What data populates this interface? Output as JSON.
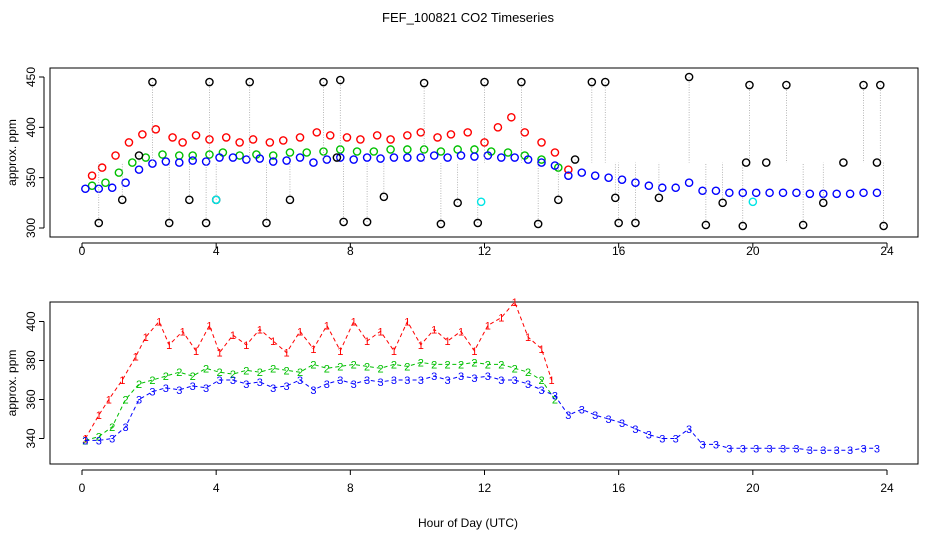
{
  "chart_data": [
    {
      "type": "scatter",
      "title": "FEF_100821  CO2 Timeseries",
      "ylabel": "approx. ppm",
      "xlabel": "",
      "xlim": [
        0,
        24
      ],
      "ylim": [
        300,
        450
      ],
      "x_ticks": [
        "0",
        "4",
        "8",
        "12",
        "16",
        "20",
        "24"
      ],
      "y_ticks": [
        "300",
        "350",
        "400",
        "450"
      ],
      "series": [
        {
          "color": "#ff0000",
          "marker": "circle",
          "x": [
            0.3,
            0.6,
            1.0,
            1.4,
            1.8,
            2.2,
            2.7,
            3.0,
            3.4,
            3.8,
            4.3,
            4.7,
            5.1,
            5.6,
            6.0,
            6.5,
            7.0,
            7.4,
            7.9,
            8.3,
            8.8,
            9.2,
            9.7,
            10.1,
            10.6,
            11.0,
            11.5,
            12.0,
            12.4,
            12.8,
            13.2,
            13.7,
            14.1,
            14.5
          ],
          "y": [
            352,
            360,
            372,
            385,
            393,
            398,
            390,
            385,
            392,
            388,
            390,
            385,
            388,
            385,
            387,
            390,
            395,
            392,
            390,
            388,
            392,
            388,
            392,
            395,
            390,
            393,
            395,
            385,
            400,
            410,
            395,
            385,
            375,
            358
          ]
        },
        {
          "color": "#00c000",
          "marker": "circle",
          "x": [
            0.3,
            0.7,
            1.1,
            1.5,
            1.9,
            2.4,
            2.9,
            3.3,
            3.8,
            4.2,
            4.7,
            5.2,
            5.7,
            6.2,
            6.7,
            7.2,
            7.7,
            8.2,
            8.7,
            9.2,
            9.7,
            10.2,
            10.7,
            11.2,
            11.7,
            12.2,
            12.7,
            13.2,
            13.7,
            14.2
          ],
          "y": [
            342,
            345,
            355,
            365,
            370,
            373,
            372,
            372,
            373,
            375,
            372,
            373,
            372,
            375,
            375,
            376,
            378,
            376,
            376,
            378,
            378,
            378,
            376,
            378,
            378,
            376,
            375,
            372,
            368,
            360
          ]
        },
        {
          "color": "#0000ff",
          "marker": "circle",
          "x": [
            0.1,
            0.5,
            0.9,
            1.3,
            1.7,
            2.1,
            2.5,
            2.9,
            3.3,
            3.7,
            4.1,
            4.5,
            4.9,
            5.3,
            5.7,
            6.1,
            6.5,
            6.9,
            7.3,
            7.7,
            8.1,
            8.5,
            8.9,
            9.3,
            9.7,
            10.1,
            10.5,
            10.9,
            11.3,
            11.7,
            12.1,
            12.5,
            12.9,
            13.3,
            13.7,
            14.1,
            14.5,
            14.9,
            15.3,
            15.7,
            16.1,
            16.5,
            16.9,
            17.3,
            17.7,
            18.1,
            18.5,
            18.9,
            19.3,
            19.7,
            20.1,
            20.5,
            20.9,
            21.3,
            21.7,
            22.1,
            22.5,
            22.9,
            23.3,
            23.7
          ],
          "y": [
            339,
            339,
            340,
            345,
            358,
            364,
            366,
            365,
            367,
            366,
            370,
            370,
            368,
            369,
            366,
            367,
            370,
            365,
            368,
            370,
            368,
            370,
            369,
            370,
            370,
            370,
            372,
            370,
            372,
            371,
            372,
            370,
            370,
            368,
            365,
            362,
            352,
            355,
            352,
            350,
            348,
            345,
            342,
            340,
            340,
            345,
            337,
            337,
            335,
            335,
            335,
            335,
            335,
            335,
            334,
            334,
            334,
            334,
            335,
            335
          ]
        },
        {
          "color": "#000000",
          "marker": "circle",
          "x": [
            0.5,
            1.2,
            1.7,
            2.1,
            2.6,
            3.2,
            3.7,
            3.8,
            4.0,
            5.0,
            5.5,
            6.2,
            7.2,
            7.6,
            7.7,
            7.8,
            8.5,
            9.0,
            10.2,
            10.7,
            11.2,
            11.8,
            12.0,
            13.1,
            13.6,
            14.2,
            14.7,
            15.2,
            15.6,
            15.9,
            16.0,
            16.5,
            17.2,
            18.1,
            18.6,
            19.1,
            19.7,
            19.8,
            19.9,
            20.4,
            21.0,
            21.5,
            22.1,
            22.7,
            23.3,
            23.7,
            23.8,
            23.9
          ],
          "y": [
            305,
            328,
            372,
            445,
            305,
            328,
            305,
            445,
            328,
            445,
            305,
            328,
            445,
            370,
            447,
            306,
            306,
            331,
            444,
            304,
            325,
            305,
            445,
            445,
            304,
            328,
            368,
            445,
            445,
            330,
            305,
            305,
            330,
            450,
            303,
            325,
            302,
            365,
            442,
            365,
            442,
            303,
            325,
            365,
            442,
            365,
            442,
            302
          ]
        },
        {
          "color": "#00e5e5",
          "marker": "circle",
          "x": [
            4.0,
            11.9,
            20.0
          ],
          "y": [
            328,
            326,
            326
          ]
        }
      ]
    },
    {
      "type": "line",
      "title": "",
      "ylabel": "approx. ppm",
      "xlabel": "Hour of Day (UTC)",
      "xlim": [
        0,
        24
      ],
      "ylim": [
        330,
        410
      ],
      "x_ticks": [
        "0",
        "4",
        "8",
        "12",
        "16",
        "20",
        "24"
      ],
      "y_ticks": [
        "340",
        "360",
        "380",
        "400"
      ],
      "series": [
        {
          "label": "1",
          "color": "#ff0000",
          "line": "dashed",
          "x": [
            0.1,
            0.5,
            0.8,
            1.2,
            1.6,
            1.9,
            2.3,
            2.6,
            3.0,
            3.4,
            3.8,
            4.1,
            4.5,
            4.9,
            5.3,
            5.7,
            6.1,
            6.5,
            6.9,
            7.3,
            7.7,
            8.1,
            8.5,
            8.9,
            9.3,
            9.7,
            10.1,
            10.5,
            10.9,
            11.3,
            11.7,
            12.1,
            12.5,
            12.9,
            13.3,
            13.7,
            14.0
          ],
          "y": [
            340,
            352,
            360,
            370,
            382,
            392,
            400,
            388,
            395,
            385,
            398,
            384,
            393,
            388,
            396,
            390,
            384,
            395,
            386,
            398,
            385,
            400,
            390,
            395,
            385,
            400,
            388,
            396,
            390,
            395,
            385,
            398,
            402,
            410,
            392,
            386,
            370
          ]
        },
        {
          "label": "2",
          "color": "#00c000",
          "line": "dashed",
          "x": [
            0.1,
            0.5,
            0.9,
            1.3,
            1.7,
            2.1,
            2.5,
            2.9,
            3.3,
            3.7,
            4.1,
            4.5,
            4.9,
            5.3,
            5.7,
            6.1,
            6.5,
            6.9,
            7.3,
            7.7,
            8.1,
            8.5,
            8.9,
            9.3,
            9.7,
            10.1,
            10.5,
            10.9,
            11.3,
            11.7,
            12.1,
            12.5,
            12.9,
            13.3,
            13.7,
            14.1
          ],
          "y": [
            339,
            341,
            346,
            360,
            368,
            370,
            372,
            374,
            372,
            376,
            374,
            373,
            375,
            374,
            376,
            375,
            374,
            378,
            376,
            377,
            378,
            377,
            376,
            378,
            377,
            379,
            378,
            378,
            378,
            379,
            378,
            378,
            376,
            374,
            370,
            360
          ]
        },
        {
          "label": "3",
          "color": "#0000ff",
          "line": "dashed",
          "x": [
            0.1,
            0.5,
            0.9,
            1.3,
            1.7,
            2.1,
            2.5,
            2.9,
            3.3,
            3.7,
            4.1,
            4.5,
            4.9,
            5.3,
            5.7,
            6.1,
            6.5,
            6.9,
            7.3,
            7.7,
            8.1,
            8.5,
            8.9,
            9.3,
            9.7,
            10.1,
            10.5,
            10.9,
            11.3,
            11.7,
            12.1,
            12.5,
            12.9,
            13.3,
            13.7,
            14.1,
            14.5,
            14.9,
            15.3,
            15.7,
            16.1,
            16.5,
            16.9,
            17.3,
            17.7,
            18.1,
            18.5,
            18.9,
            19.3,
            19.7,
            20.1,
            20.5,
            20.9,
            21.3,
            21.7,
            22.1,
            22.5,
            22.9,
            23.3,
            23.7
          ],
          "y": [
            339,
            339,
            340,
            346,
            360,
            364,
            366,
            365,
            367,
            366,
            370,
            370,
            368,
            369,
            366,
            367,
            370,
            365,
            368,
            370,
            368,
            370,
            369,
            370,
            370,
            370,
            372,
            370,
            372,
            371,
            372,
            370,
            370,
            368,
            365,
            362,
            352,
            355,
            352,
            350,
            348,
            345,
            342,
            340,
            340,
            345,
            337,
            337,
            335,
            335,
            335,
            335,
            335,
            335,
            334,
            334,
            334,
            334,
            335,
            335
          ]
        }
      ]
    }
  ]
}
